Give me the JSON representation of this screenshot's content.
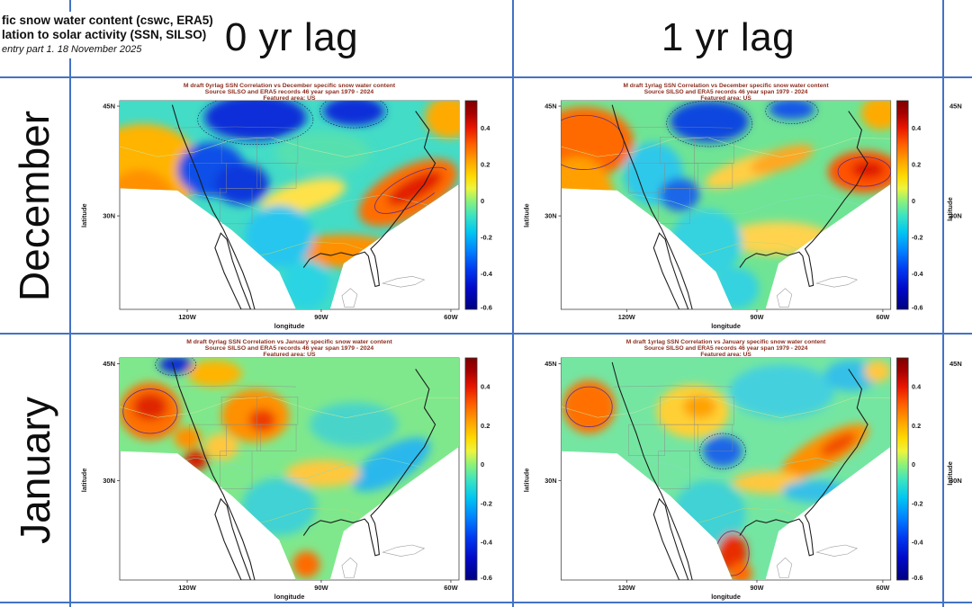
{
  "slide": {
    "title_line1": "fic snow water content (cswc, ERA5)",
    "title_line2": "lation to solar activity (SSN, SILSO)",
    "subtitle": "entry part 1. 18 November 2025",
    "col_headers": [
      "0 yr lag",
      "1 yr lag"
    ],
    "row_labels": [
      "December",
      "January"
    ]
  },
  "colors": {
    "table_border_blue": "#4472c4",
    "map_title_red": "#8b2f20",
    "axis_text": "#1a1a1a",
    "coastline_black": "#1c1c1c",
    "state_border_gray": "#8a8a8a",
    "island_outline_gray": "#9a9a9a"
  },
  "right_column_partial": {
    "y_ticks": [
      "45N",
      "30N"
    ],
    "ylabel": "latitude"
  },
  "chart_data": {
    "type": "heatmap",
    "colormap": "jet",
    "colorbar_range": [
      -0.6,
      0.55
    ],
    "colorbar_ticks": [
      "0.4",
      "0.2",
      "0",
      "-0.2",
      "-0.4",
      "-0.6"
    ],
    "geographic_area": "US",
    "panels": [
      {
        "id": "december-0yr",
        "title": "M draft 0yrlag SSN Correlation vs December specific snow water content",
        "source": "Source SILSO and ERA5 records  46 year span 1979 - 2024",
        "area": "Featured area: US",
        "xlabel": "longitude",
        "ylabel": "latitude",
        "x_ticks": [
          "120W",
          "90W",
          "60W"
        ],
        "y_ticks": [
          "45N",
          "30N"
        ],
        "base_color": "#43dcc6",
        "base_value": -0.1,
        "regions": [
          {
            "name": "west-coast-positive",
            "fx": 0.07,
            "fy": 0.33,
            "frx": 0.17,
            "fry": 0.22,
            "color": "#ffb400",
            "value": 0.25
          },
          {
            "name": "california-coast-positive",
            "fx": 0.06,
            "fy": 0.55,
            "frx": 0.12,
            "fry": 0.22,
            "color": "#ff9000",
            "value": 0.3
          },
          {
            "name": "northern-plains-negative",
            "fx": 0.4,
            "fy": 0.08,
            "frx": 0.15,
            "fry": 0.11,
            "color": "#0b2fd8",
            "value": -0.45
          },
          {
            "name": "northeast-negative",
            "fx": 0.69,
            "fy": 0.05,
            "frx": 0.09,
            "fry": 0.07,
            "color": "#0b2fd8",
            "value": -0.45
          },
          {
            "name": "great-basin-negative",
            "fx": 0.27,
            "fy": 0.33,
            "frx": 0.1,
            "fry": 0.13,
            "color": "#1050e8",
            "value": -0.4
          },
          {
            "name": "colorado-negative",
            "fx": 0.36,
            "fy": 0.4,
            "frx": 0.08,
            "fry": 0.1,
            "color": "#0b38dc",
            "value": -0.45
          },
          {
            "name": "central-plains-positive",
            "fx": 0.54,
            "fy": 0.46,
            "frx": 0.13,
            "fry": 0.07,
            "rot": -15,
            "color": "#ffe24a",
            "value": 0.15
          },
          {
            "name": "southeast-coast-positive",
            "fx": 0.85,
            "fy": 0.44,
            "frx": 0.16,
            "fry": 0.12,
            "rot": -28,
            "color": "#ff6d00",
            "value": 0.35
          },
          {
            "name": "southeast-core-positive",
            "fx": 0.87,
            "fy": 0.42,
            "frx": 0.09,
            "fry": 0.05,
            "rot": -28,
            "color": "#e11d00",
            "value": 0.45
          },
          {
            "name": "gulf-coast-positive",
            "fx": 0.66,
            "fy": 0.72,
            "frx": 0.15,
            "fry": 0.08,
            "color": "#ff9000",
            "value": 0.3
          },
          {
            "name": "texas-negative",
            "fx": 0.47,
            "fy": 0.65,
            "frx": 0.1,
            "fry": 0.15,
            "color": "#28c6ee",
            "value": -0.2
          },
          {
            "name": "mexico-negative",
            "fx": 0.55,
            "fy": 0.88,
            "frx": 0.07,
            "fry": 0.12,
            "color": "#2ad4e2",
            "value": -0.2
          },
          {
            "name": "midwest-neutral",
            "fx": 0.6,
            "fy": 0.25,
            "frx": 0.14,
            "fry": 0.1,
            "color": "#57e0b0",
            "value": -0.05
          },
          {
            "name": "northeast-corner-positive",
            "fx": 0.97,
            "fy": 0.08,
            "frx": 0.07,
            "fry": 0.1,
            "color": "#ffaa00",
            "value": 0.25
          }
        ],
        "contours_dashed": [
          {
            "fx": 0.4,
            "fy": 0.09,
            "frx": 0.17,
            "fry": 0.12
          },
          {
            "fx": 0.69,
            "fy": 0.05,
            "frx": 0.1,
            "fry": 0.08
          }
        ],
        "contours_outline": [
          {
            "fx": 0.86,
            "fy": 0.43,
            "frx": 0.12,
            "fry": 0.07,
            "rot": -28,
            "color": "#5b2d8e"
          }
        ]
      },
      {
        "id": "december-1yr",
        "title": "M draft 1yrlag SSN Correlation vs December specific snow water content",
        "source": "Source SILSO and ERA5 records  46 year span 1979 - 2024",
        "area": "Featured area: US",
        "xlabel": "longitude",
        "ylabel": "latitude",
        "x_ticks": [
          "120W",
          "90W",
          "60W"
        ],
        "y_ticks": [
          "45N",
          "30N"
        ],
        "base_color": "#6fe494",
        "base_value": 0.0,
        "regions": [
          {
            "name": "pacific-northwest-positive",
            "fx": 0.07,
            "fy": 0.2,
            "frx": 0.15,
            "fry": 0.17,
            "color": "#ff6a00",
            "value": 0.4
          },
          {
            "name": "west-coast-positive",
            "fx": 0.05,
            "fy": 0.47,
            "frx": 0.11,
            "fry": 0.2,
            "color": "#ffa000",
            "value": 0.3
          },
          {
            "name": "northern-plains-negative",
            "fx": 0.45,
            "fy": 0.1,
            "frx": 0.12,
            "fry": 0.1,
            "color": "#0f47e0",
            "value": -0.4
          },
          {
            "name": "northeast-negative-spot",
            "fx": 0.7,
            "fy": 0.04,
            "frx": 0.07,
            "fry": 0.05,
            "color": "#1257e8",
            "value": -0.35
          },
          {
            "name": "great-basin-negative",
            "fx": 0.28,
            "fy": 0.35,
            "frx": 0.09,
            "fry": 0.15,
            "color": "#2fc8ea",
            "value": -0.25
          },
          {
            "name": "central-positive-streak",
            "fx": 0.57,
            "fy": 0.33,
            "frx": 0.14,
            "fry": 0.06,
            "rot": -18,
            "color": "#ffcf44",
            "value": 0.2
          },
          {
            "name": "ohio-valley-positive",
            "fx": 0.67,
            "fy": 0.28,
            "frx": 0.1,
            "fry": 0.05,
            "rot": -18,
            "color": "#ffa722",
            "value": 0.25
          },
          {
            "name": "mid-atlantic-positive",
            "fx": 0.92,
            "fy": 0.34,
            "frx": 0.11,
            "fry": 0.1,
            "color": "#ff5200",
            "value": 0.4
          },
          {
            "name": "mid-atlantic-core",
            "fx": 0.93,
            "fy": 0.33,
            "frx": 0.05,
            "fry": 0.04,
            "color": "#dd1200",
            "value": 0.5
          },
          {
            "name": "gulf-coast-positive",
            "fx": 0.66,
            "fy": 0.66,
            "frx": 0.16,
            "fry": 0.08,
            "color": "#ffd34d",
            "value": 0.15
          },
          {
            "name": "texas-negative",
            "fx": 0.44,
            "fy": 0.68,
            "frx": 0.11,
            "fry": 0.16,
            "color": "#35d2e0",
            "value": -0.2
          },
          {
            "name": "mexico-negative",
            "fx": 0.53,
            "fy": 0.9,
            "frx": 0.07,
            "fry": 0.1,
            "color": "#35d2e0",
            "value": -0.2
          },
          {
            "name": "top-right-positive",
            "fx": 0.97,
            "fy": 0.06,
            "frx": 0.06,
            "fry": 0.08,
            "color": "#ffaa00",
            "value": 0.25
          },
          {
            "name": "rockies-negative-spot",
            "fx": 0.36,
            "fy": 0.45,
            "frx": 0.06,
            "fry": 0.08,
            "color": "#1a66e8",
            "value": -0.3
          }
        ],
        "contours_dashed": [
          {
            "fx": 0.45,
            "fy": 0.11,
            "frx": 0.13,
            "fry": 0.11
          },
          {
            "fx": 0.7,
            "fy": 0.05,
            "frx": 0.08,
            "fry": 0.06
          }
        ],
        "contours_outline": [
          {
            "fx": 0.07,
            "fy": 0.2,
            "frx": 0.12,
            "fry": 0.13,
            "color": "#5b2d8e"
          },
          {
            "fx": 0.92,
            "fy": 0.34,
            "frx": 0.08,
            "fry": 0.07,
            "color": "#5b2d8e"
          }
        ]
      },
      {
        "id": "january-0yr",
        "title": "M draft 0yrlag SSN Correlation vs January specific snow water content",
        "source": "Source SILSO and ERA5 records  46 year span 1979 - 2024",
        "area": "Featured area: US",
        "xlabel": "longitude",
        "ylabel": "latitude",
        "x_ticks": [
          "120W",
          "90W",
          "60W"
        ],
        "y_ticks": [
          "45N",
          "30N"
        ],
        "base_color": "#7fe88c",
        "base_value": 0.0,
        "regions": [
          {
            "name": "pacific-northwest-positive",
            "fx": 0.09,
            "fy": 0.24,
            "frx": 0.09,
            "fry": 0.13,
            "color": "#ff7000",
            "value": 0.4
          },
          {
            "name": "pacific-northwest-core",
            "fx": 0.09,
            "fy": 0.22,
            "frx": 0.05,
            "fry": 0.06,
            "color": "#e02500",
            "value": 0.5
          },
          {
            "name": "washington-negative-spot",
            "fx": 0.165,
            "fy": 0.03,
            "frx": 0.05,
            "fry": 0.04,
            "color": "#0b2fd0",
            "value": -0.45
          },
          {
            "name": "montana-positive",
            "fx": 0.28,
            "fy": 0.07,
            "frx": 0.08,
            "fry": 0.06,
            "color": "#ffb400",
            "value": 0.25
          },
          {
            "name": "colorado-positive",
            "fx": 0.4,
            "fy": 0.26,
            "frx": 0.1,
            "fry": 0.12,
            "color": "#ff9000",
            "value": 0.3
          },
          {
            "name": "colorado-core",
            "fx": 0.42,
            "fy": 0.28,
            "frx": 0.04,
            "fry": 0.05,
            "color": "#ee3a00",
            "value": 0.45
          },
          {
            "name": "nevada-red-speck",
            "fx": 0.225,
            "fy": 0.46,
            "frx": 0.035,
            "fry": 0.045,
            "color": "#d41e00",
            "value": 0.5
          },
          {
            "name": "california-specks",
            "fx": 0.2,
            "fy": 0.36,
            "frx": 0.04,
            "fry": 0.05,
            "color": "#ff9000",
            "value": 0.3
          },
          {
            "name": "great-lakes-negative",
            "fx": 0.69,
            "fy": 0.3,
            "frx": 0.13,
            "fry": 0.1,
            "color": "#49d4ca",
            "value": -0.15
          },
          {
            "name": "southeast-coast-negative",
            "fx": 0.8,
            "fy": 0.48,
            "frx": 0.13,
            "fry": 0.08,
            "rot": -30,
            "color": "#2ab7ec",
            "value": -0.25
          },
          {
            "name": "south-plains-positive-streak",
            "fx": 0.6,
            "fy": 0.52,
            "frx": 0.11,
            "fry": 0.06,
            "color": "#ffc83c",
            "value": 0.2
          },
          {
            "name": "texas-negative",
            "fx": 0.47,
            "fy": 0.67,
            "frx": 0.11,
            "fry": 0.13,
            "color": "#3fd2d4",
            "value": -0.2
          },
          {
            "name": "mexico-positive-spot",
            "fx": 0.55,
            "fy": 0.93,
            "frx": 0.04,
            "fry": 0.06,
            "color": "#ff6a00",
            "value": 0.35
          },
          {
            "name": "utah-positive",
            "fx": 0.3,
            "fy": 0.4,
            "frx": 0.05,
            "fry": 0.06,
            "color": "#ffc83c",
            "value": 0.2
          }
        ],
        "contours_dashed": [
          {
            "fx": 0.165,
            "fy": 0.03,
            "frx": 0.06,
            "fry": 0.05
          }
        ],
        "contours_outline": [
          {
            "fx": 0.09,
            "fy": 0.24,
            "frx": 0.08,
            "fry": 0.1,
            "color": "#5b2d8e"
          }
        ]
      },
      {
        "id": "january-1yr",
        "title": "M draft 1yrlag SSN Correlation vs January specific snow water content",
        "source": "Source SILSO and ERA5 records  46 year span 1979 - 2024",
        "area": "Featured area: US",
        "xlabel": "longitude",
        "ylabel": "latitude",
        "x_ticks": [
          "120W",
          "90W",
          "60W"
        ],
        "y_ticks": [
          "45N",
          "30N"
        ],
        "base_color": "#74e6a2",
        "base_value": 0.0,
        "regions": [
          {
            "name": "pacific-northwest-positive",
            "fx": 0.085,
            "fy": 0.22,
            "frx": 0.08,
            "fry": 0.12,
            "color": "#ff7000",
            "value": 0.4
          },
          {
            "name": "wyoming-positive",
            "fx": 0.4,
            "fy": 0.24,
            "frx": 0.11,
            "fry": 0.12,
            "color": "#ffd034",
            "value": 0.2
          },
          {
            "name": "wyoming-core",
            "fx": 0.42,
            "fy": 0.22,
            "frx": 0.05,
            "fry": 0.05,
            "color": "#ffa200",
            "value": 0.3
          },
          {
            "name": "kansas-negative-spot",
            "fx": 0.49,
            "fy": 0.42,
            "frx": 0.06,
            "fry": 0.07,
            "color": "#1a66e8",
            "value": -0.3
          },
          {
            "name": "great-lakes-negative",
            "fx": 0.67,
            "fy": 0.15,
            "frx": 0.16,
            "fry": 0.12,
            "color": "#45d0de",
            "value": -0.15
          },
          {
            "name": "northeast-negative",
            "fx": 0.88,
            "fy": 0.08,
            "frx": 0.08,
            "fry": 0.07,
            "color": "#35c0e8",
            "value": -0.2
          },
          {
            "name": "appalachian-positive-band",
            "fx": 0.8,
            "fy": 0.42,
            "frx": 0.15,
            "fry": 0.07,
            "rot": -28,
            "color": "#ff9000",
            "value": 0.3
          },
          {
            "name": "appalachian-core",
            "fx": 0.84,
            "fy": 0.39,
            "frx": 0.06,
            "fry": 0.035,
            "rot": -28,
            "color": "#f14e00",
            "value": 0.4
          },
          {
            "name": "south-plains-positive-streak",
            "fx": 0.63,
            "fy": 0.56,
            "frx": 0.11,
            "fry": 0.05,
            "color": "#ffc83c",
            "value": 0.2
          },
          {
            "name": "texas-negative",
            "fx": 0.45,
            "fy": 0.7,
            "frx": 0.11,
            "fry": 0.15,
            "color": "#3fd2d4",
            "value": -0.2
          },
          {
            "name": "mexico-positive",
            "fx": 0.52,
            "fy": 0.88,
            "frx": 0.045,
            "fry": 0.09,
            "color": "#e82e00",
            "value": 0.45
          },
          {
            "name": "mexico-positive-2",
            "fx": 0.545,
            "fy": 0.97,
            "frx": 0.035,
            "fry": 0.05,
            "color": "#ff6a00",
            "value": 0.35
          },
          {
            "name": "top-right-positive-spot",
            "fx": 0.96,
            "fy": 0.06,
            "frx": 0.04,
            "fry": 0.05,
            "color": "#ffc83c",
            "value": 0.2
          },
          {
            "name": "east-coast-negative-fringe",
            "fx": 0.77,
            "fy": 0.6,
            "frx": 0.1,
            "fry": 0.05,
            "color": "#35c0e8",
            "value": -0.2
          }
        ],
        "contours_dashed": [
          {
            "fx": 0.49,
            "fy": 0.42,
            "frx": 0.07,
            "fry": 0.08
          }
        ],
        "contours_outline": [
          {
            "fx": 0.085,
            "fy": 0.22,
            "frx": 0.07,
            "fry": 0.09,
            "color": "#5b2d8e"
          },
          {
            "fx": 0.52,
            "fy": 0.88,
            "frx": 0.05,
            "fry": 0.1,
            "color": "#8b1a5e"
          }
        ]
      }
    ]
  }
}
